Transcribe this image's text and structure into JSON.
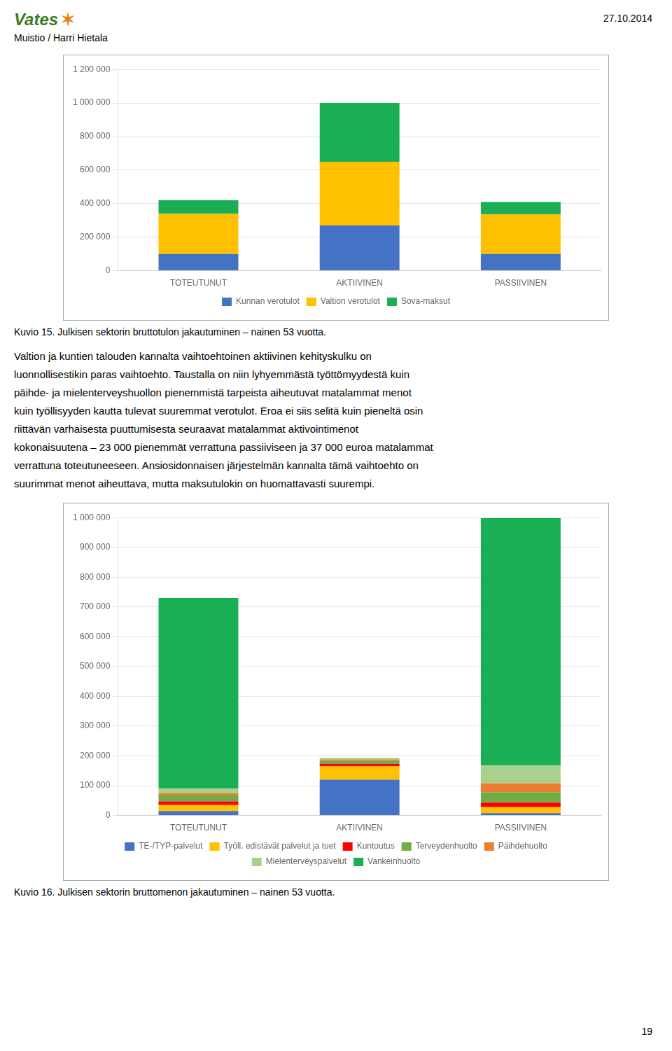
{
  "annotations": [
    "Vates",
    "✶",
    "27.10.2014",
    "Muistio / Harri Hietala",
    "Valtion ja kuntien talouden kannalta vaihtoehtoinen aktiivinen kehityskulku on",
    "luonnollisestikin paras vaihtoehto. Taustalla on niin lyhyemmästä työttömyydestä kuin",
    "päihde- ja mielenterveyshuollon pienemmistä tarpeista aiheutuvat matalammat menot",
    "kuin työllisyyden kautta tulevat suuremmat verotulot. Eroa ei siis selitä kuin pieneltä osin",
    "riittävän varhaisesta puuttumisesta seuraavat matalammat aktivointimenot",
    "kokonaisuutena – 23 000 pienemmät verrattuna passiiviseen ja 37 000 euroa matalammat",
    "verrattuna toteutuneeseen. Ansiosidonnaisen järjestelmän kannalta tämä vaihtoehto on",
    "suurimmat menot aiheuttava, mutta maksutulokin on huomattavasti suurempi.",
    "19"
  ],
  "chart_data": [
    {
      "type": "bar",
      "stacked": true,
      "grid": true,
      "legend": "bottom",
      "title": "Kuvio 15. Julkisen sektorin bruttotulon jakautuminen – nainen 53 vuotta.",
      "categories": [
        "TOTEUTUNUT",
        "AKTIIVINEN",
        "PASSIIVINEN"
      ],
      "series": [
        {
          "name": "Kunnan verotulot",
          "color": "#4472C4",
          "values": [
            100000,
            270000,
            100000
          ]
        },
        {
          "name": "Valtion verotulot",
          "color": "#FFC000",
          "values": [
            240000,
            380000,
            235000
          ]
        },
        {
          "name": "Sova-maksut",
          "color": "#1AAF54",
          "values": [
            80000,
            350000,
            75000
          ]
        }
      ],
      "ylim": [
        0,
        1200000
      ],
      "yticks": [
        0,
        {
          "value": 200000,
          "label": "200 000"
        },
        {
          "value": 400000,
          "label": "400 000"
        },
        {
          "value": 600000,
          "label": "600 000"
        },
        {
          "value": 800000,
          "label": "800 000"
        },
        {
          "value": 1000000,
          "label": "1 000 000"
        },
        {
          "value": 1200000,
          "label": "1 200 000"
        }
      ]
    },
    {
      "type": "bar",
      "stacked": true,
      "grid": true,
      "legend": "bottom",
      "title": "Kuvio 16. Julkisen sektorin bruttomenon jakautuminen – nainen 53 vuotta.",
      "categories": [
        "TOTEUTUNUT",
        "AKTIIVINEN",
        "PASSIIVINEN"
      ],
      "series": [
        {
          "name": "TE-/TYP-palvelut",
          "color": "#4472C4",
          "values": [
            15000,
            120000,
            8000
          ]
        },
        {
          "name": "Työll. edistävät palvelut ja tuet",
          "color": "#FFC000",
          "values": [
            20000,
            45000,
            20000
          ]
        },
        {
          "name": "Kuntoutus",
          "color": "#FF0000",
          "values": [
            12000,
            8000,
            15000
          ]
        },
        {
          "name": "Terveydenhuolto",
          "color": "#70AD47",
          "values": [
            20000,
            10000,
            35000
          ]
        },
        {
          "name": "Päihdehuolto",
          "color": "#ED7D31",
          "values": [
            8000,
            5000,
            30000
          ]
        },
        {
          "name": "Mielenterveyspalvelut",
          "color": "#A9D18E",
          "values": [
            15000,
            5000,
            60000
          ]
        },
        {
          "name": "Vankeinhuolto",
          "color": "#1AAF54",
          "values": [
            640000,
            0,
            830000
          ]
        }
      ],
      "ylim": [
        0,
        1000000
      ],
      "yticks": [
        0,
        {
          "value": 100000,
          "label": "100 000"
        },
        {
          "value": 200000,
          "label": "200 000"
        },
        {
          "value": 300000,
          "label": "300 000"
        },
        {
          "value": 400000,
          "label": "400 000"
        },
        {
          "value": 500000,
          "label": "500 000"
        },
        {
          "value": 600000,
          "label": "600 000"
        },
        {
          "value": 700000,
          "label": "700 000"
        },
        {
          "value": 800000,
          "label": "800 000"
        },
        {
          "value": 900000,
          "label": "900 000"
        },
        {
          "value": 1000000,
          "label": "1 000 000"
        }
      ]
    }
  ]
}
